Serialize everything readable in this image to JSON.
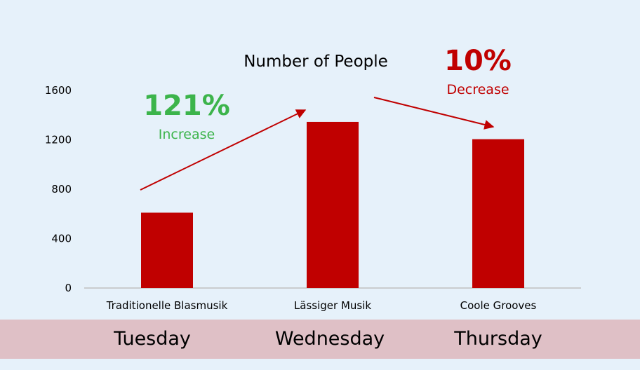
{
  "colors": {
    "background": "#e6f1fa",
    "bar": "#c00000",
    "increase": "#3cb44b",
    "decrease": "#c00000",
    "band": "#dfc0c6",
    "axis": "#bfbfbf"
  },
  "chart_data": {
    "type": "bar",
    "title": "Number of People",
    "categories": [
      "Traditionelle Blasmusik",
      "Lässiger Musik",
      "Coole Grooves"
    ],
    "values": [
      610,
      1345,
      1205
    ],
    "ylim": [
      0,
      1600
    ],
    "yticks": [
      "0",
      "400",
      "800",
      "1200",
      "1600"
    ],
    "xlabel": "",
    "ylabel": "",
    "grid": false,
    "annotations": {
      "increase": {
        "percent": "121%",
        "label": "Increase"
      },
      "decrease": {
        "percent": "10%",
        "label": "Decrease"
      }
    }
  },
  "days": [
    "Tuesday",
    "Wednesday",
    "Thursday"
  ]
}
